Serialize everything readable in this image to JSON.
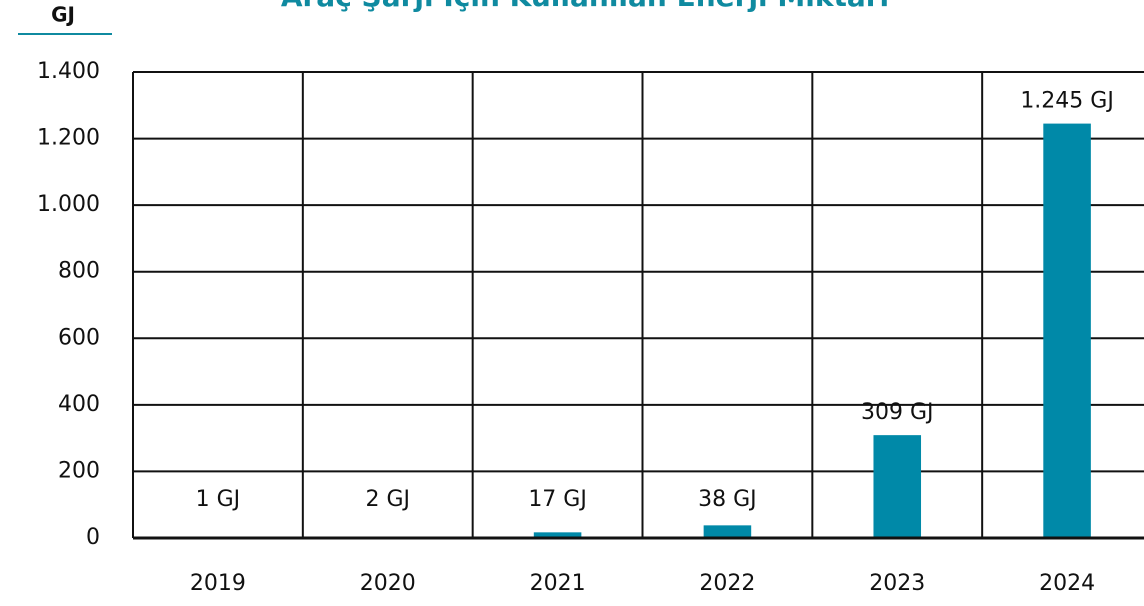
{
  "chart_data": {
    "type": "bar",
    "title": "Araç Şarjı İçin Kullanılan Enerji Miktarı",
    "y_label": "GJ",
    "categories": [
      "2019",
      "2020",
      "2021",
      "2022",
      "2023",
      "2024"
    ],
    "values": [
      1,
      2,
      17,
      38,
      309,
      1245
    ],
    "value_labels": [
      "1 GJ",
      "2 GJ",
      "17 GJ",
      "38 GJ",
      "309 GJ",
      "1.245 GJ"
    ],
    "color": "#0089a8",
    "ylim": [
      0,
      1400
    ],
    "yticks": [
      0,
      200,
      400,
      600,
      800,
      {
        "value": 1000,
        "label": "1.000"
      },
      {
        "value": 1200,
        "label": "1.200"
      },
      {
        "value": 1400,
        "label": "1.400"
      }
    ],
    "grid": true
  }
}
